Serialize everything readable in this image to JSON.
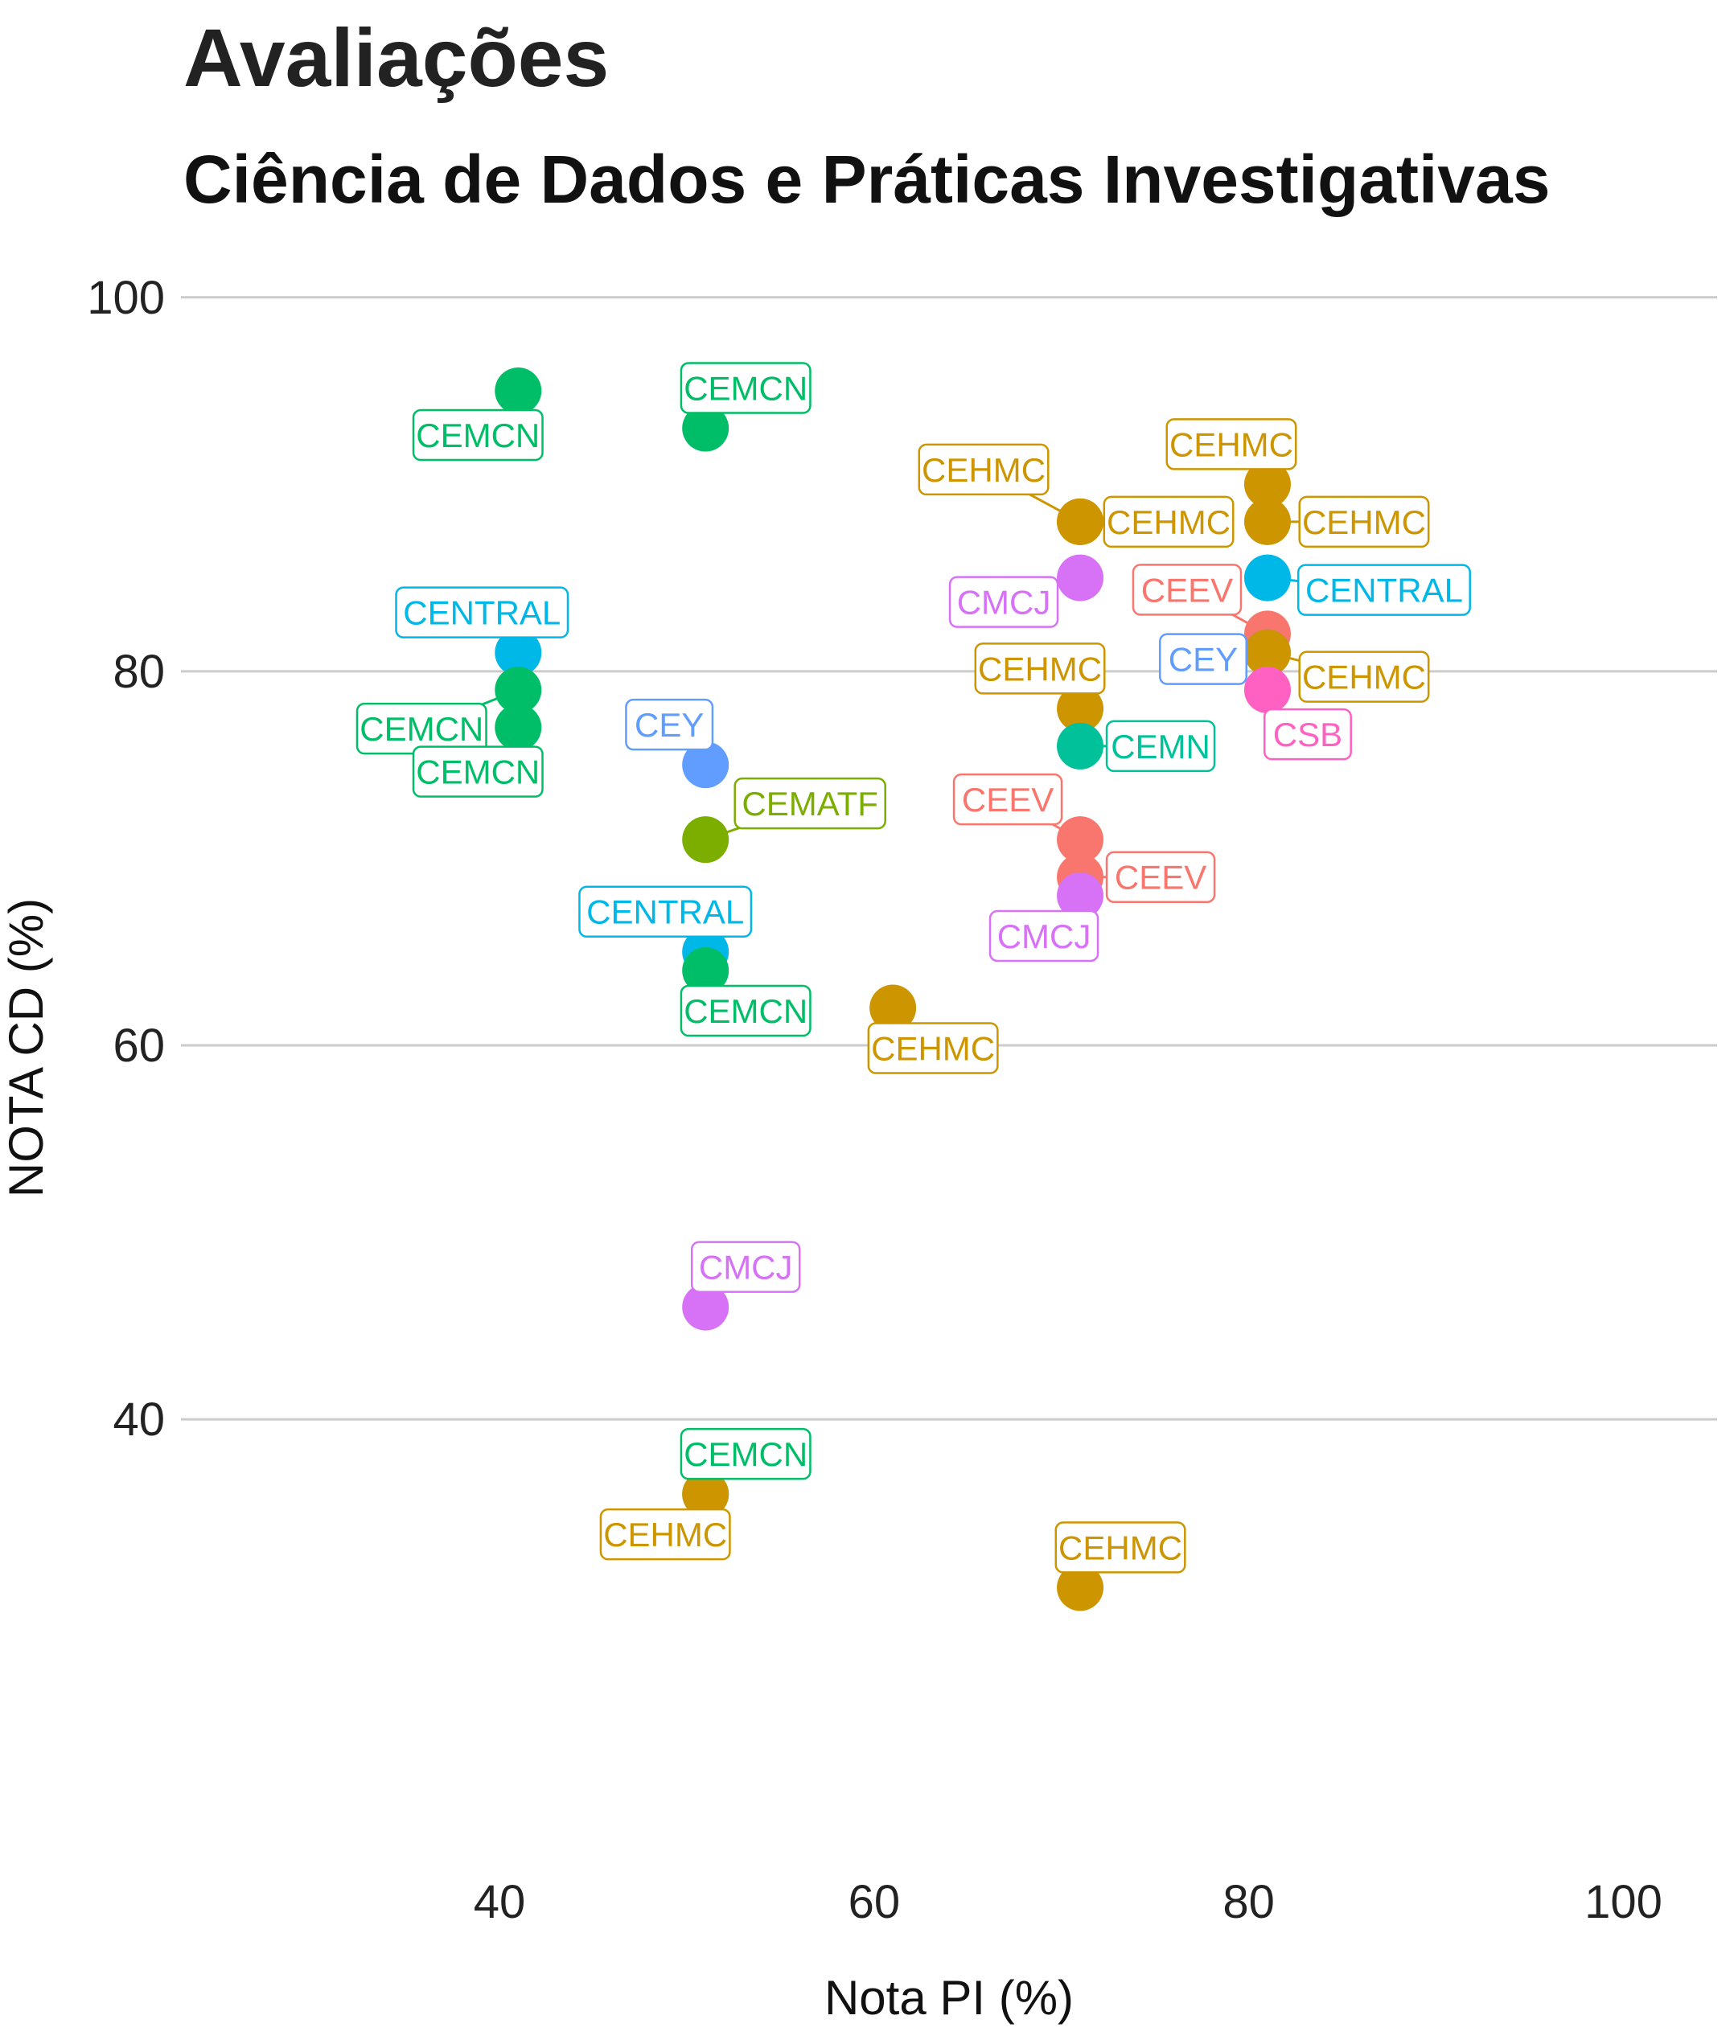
{
  "chart_data": {
    "type": "scatter",
    "title": "Avaliações",
    "subtitle": "Ciência de Dados e Práticas Investigativas",
    "xlabel": "Nota PI (%)",
    "ylabel": "NOTA CD (%)",
    "xlim": [
      23,
      105
    ],
    "ylim": [
      17,
      103
    ],
    "xticks": [
      40,
      60,
      80,
      100
    ],
    "yticks": [
      40,
      60,
      80,
      100
    ],
    "grid": "horizontal major only",
    "legend": "none",
    "colors": {
      "CEEV": "#F8766D",
      "CEHMC": "#CD9600",
      "CEMATF": "#7CAE00",
      "CEMCN": "#00BE67",
      "CEMN": "#00C19A",
      "CENTRAL": "#00B8E7",
      "CEY": "#619CFF",
      "CMCJ": "#D772F7",
      "CSB": "#FF61C3"
    },
    "points": [
      {
        "x": 41,
        "y": 95,
        "label": "CEMCN"
      },
      {
        "x": 51,
        "y": 93,
        "label": "CEMCN"
      },
      {
        "x": 41,
        "y": 81,
        "label": "CENTRAL"
      },
      {
        "x": 41,
        "y": 79,
        "label": "CEMCN"
      },
      {
        "x": 41,
        "y": 77,
        "label": "CEMCN"
      },
      {
        "x": 51,
        "y": 75,
        "label": "CEY"
      },
      {
        "x": 51,
        "y": 71,
        "label": "CEMATF"
      },
      {
        "x": 51,
        "y": 65,
        "label": "CENTRAL"
      },
      {
        "x": 51,
        "y": 64,
        "label": "CEMCN"
      },
      {
        "x": 61,
        "y": 62,
        "label": "CEHMC"
      },
      {
        "x": 51,
        "y": 46,
        "label": "CMCJ"
      },
      {
        "x": 51,
        "y": 36,
        "label": "CEMCN"
      },
      {
        "x": 51,
        "y": 36,
        "label": "CEHMC"
      },
      {
        "x": 71,
        "y": 31,
        "label": "CEHMC"
      },
      {
        "x": 71,
        "y": 88,
        "label": "CEHMC"
      },
      {
        "x": 71,
        "y": 88,
        "label": "CEHMC"
      },
      {
        "x": 71,
        "y": 85,
        "label": "CMCJ"
      },
      {
        "x": 71,
        "y": 78,
        "label": "CEHMC"
      },
      {
        "x": 71,
        "y": 76,
        "label": "CEMN"
      },
      {
        "x": 71,
        "y": 71,
        "label": "CEEV"
      },
      {
        "x": 71,
        "y": 69,
        "label": "CEEV"
      },
      {
        "x": 71,
        "y": 68,
        "label": "CMCJ"
      },
      {
        "x": 81,
        "y": 90,
        "label": "CEHMC"
      },
      {
        "x": 81,
        "y": 88,
        "label": "CEHMC"
      },
      {
        "x": 81,
        "y": 85,
        "label": "CENTRAL"
      },
      {
        "x": 81,
        "y": 82,
        "label": "CEEV"
      },
      {
        "x": 81,
        "y": 81,
        "label": "CEY"
      },
      {
        "x": 81,
        "y": 81,
        "label": "CEHMC"
      },
      {
        "x": 81,
        "y": 79,
        "label": "CSB"
      }
    ]
  }
}
